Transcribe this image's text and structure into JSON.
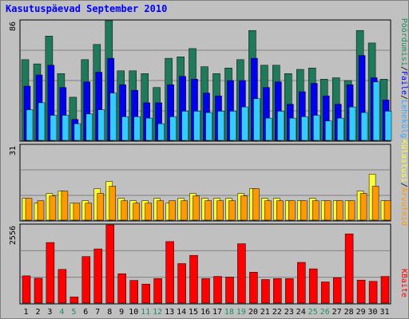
{
  "title": "Kasutuspäevad September 2010",
  "colors": {
    "background": "#c0c0c0",
    "grid": "#808080",
    "title": "#0000ff",
    "pages": "#1f7a5c",
    "files": "#0000ee",
    "hits": "#33ccff",
    "visits": "#ff9900",
    "sites": "#ffff33",
    "kbytes": "#ff0000",
    "weekend_label": "#1f8f5f"
  },
  "right_legend_top": {
    "items": [
      {
        "label": "Pöördumisi",
        "color": "#1f8f5f"
      },
      {
        "label": "Faile",
        "color": "#0000ff"
      },
      {
        "label": "Lehekülgi",
        "color": "#33aaff"
      }
    ],
    "separator": "/"
  },
  "right_legend_middle": {
    "items": [
      {
        "label": "Külastusi",
        "color": "#ffff33"
      },
      {
        "label": "Arvuteid",
        "color": "#ff9900"
      }
    ],
    "separator": "/"
  },
  "right_legend_bottom": {
    "items": [
      {
        "label": "KBaite",
        "color": "#ff0000"
      }
    ]
  },
  "chart_data": [
    {
      "type": "bar",
      "panel": "top",
      "ytick_label": "86",
      "ylim": [
        0,
        86
      ],
      "categories": [
        "1",
        "2",
        "3",
        "4",
        "5",
        "6",
        "7",
        "8",
        "9",
        "10",
        "11",
        "12",
        "13",
        "14",
        "15",
        "16",
        "17",
        "18",
        "19",
        "20",
        "21",
        "22",
        "23",
        "24",
        "25",
        "26",
        "27",
        "28",
        "29",
        "30",
        "31"
      ],
      "series": [
        {
          "name": "Pöördumisi",
          "values": [
            58,
            55,
            75,
            48,
            31,
            58,
            69,
            86,
            50,
            50,
            48,
            38,
            59,
            60,
            66,
            53,
            48,
            52,
            58,
            79,
            54,
            54,
            48,
            51,
            52,
            44,
            45,
            43,
            79,
            70,
            44
          ]
        },
        {
          "name": "Faile",
          "values": [
            39,
            47,
            54,
            38,
            15,
            42,
            49,
            59,
            40,
            36,
            27,
            27,
            40,
            46,
            44,
            34,
            32,
            43,
            43,
            59,
            38,
            42,
            26,
            35,
            41,
            32,
            26,
            40,
            61,
            45,
            29
          ]
        },
        {
          "name": "Lehekülgi",
          "values": [
            22,
            27,
            18,
            18,
            12,
            19,
            22,
            34,
            17,
            17,
            16,
            12,
            17,
            21,
            21,
            20,
            21,
            21,
            24,
            30,
            16,
            21,
            16,
            17,
            18,
            14,
            16,
            24,
            20,
            42,
            21
          ]
        }
      ]
    },
    {
      "type": "bar",
      "panel": "middle",
      "ytick_label": "31",
      "ylim": [
        0,
        31
      ],
      "categories": [
        "1",
        "2",
        "3",
        "4",
        "5",
        "6",
        "7",
        "8",
        "9",
        "10",
        "11",
        "12",
        "13",
        "14",
        "15",
        "16",
        "17",
        "18",
        "19",
        "20",
        "21",
        "22",
        "23",
        "24",
        "25",
        "26",
        "27",
        "28",
        "29",
        "30",
        "31"
      ],
      "series": [
        {
          "name": "Külastusi",
          "values": [
            9,
            7,
            11,
            12,
            7,
            8,
            13,
            16,
            9,
            8,
            8,
            9,
            7,
            9,
            11,
            9,
            9,
            9,
            11,
            13,
            9,
            9,
            8,
            8,
            9,
            8,
            8,
            8,
            12,
            19,
            8
          ]
        },
        {
          "name": "Arvuteid",
          "values": [
            9,
            8,
            10,
            12,
            7,
            7,
            11,
            14,
            8,
            7,
            7,
            8,
            8,
            8,
            10,
            8,
            8,
            8,
            10,
            13,
            8,
            8,
            8,
            8,
            8,
            8,
            8,
            8,
            11,
            14,
            8
          ]
        }
      ]
    },
    {
      "type": "bar",
      "panel": "bottom",
      "ytick_label": "2556",
      "ylim": [
        0,
        2556
      ],
      "categories": [
        "1",
        "2",
        "3",
        "4",
        "5",
        "6",
        "7",
        "8",
        "9",
        "10",
        "11",
        "12",
        "13",
        "14",
        "15",
        "16",
        "17",
        "18",
        "19",
        "20",
        "21",
        "22",
        "23",
        "24",
        "25",
        "26",
        "27",
        "28",
        "29",
        "30",
        "31"
      ],
      "series": [
        {
          "name": "KBaite",
          "values": [
            890,
            810,
            1980,
            1100,
            200,
            1520,
            1770,
            2556,
            960,
            740,
            620,
            800,
            2010,
            1290,
            1560,
            800,
            870,
            850,
            1940,
            1010,
            770,
            800,
            800,
            1330,
            1120,
            690,
            830,
            2260,
            750,
            710,
            870
          ]
        }
      ]
    }
  ],
  "x_axis": {
    "labels": [
      "1",
      "2",
      "3",
      "4",
      "5",
      "6",
      "7",
      "8",
      "9",
      "10",
      "11",
      "12",
      "13",
      "14",
      "15",
      "16",
      "17",
      "18",
      "19",
      "20",
      "21",
      "22",
      "23",
      "24",
      "25",
      "26",
      "27",
      "28",
      "29",
      "30",
      "31"
    ],
    "weekend_days": [
      "4",
      "5",
      "11",
      "12",
      "18",
      "19",
      "25",
      "26"
    ]
  }
}
